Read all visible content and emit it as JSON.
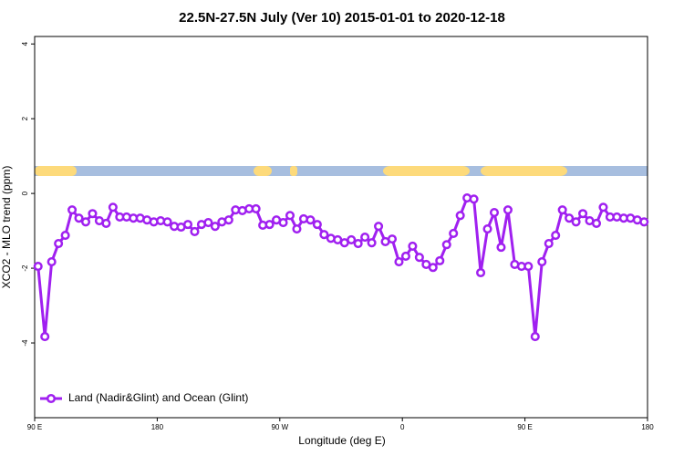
{
  "chart_data": {
    "type": "line",
    "title": "22.5N-27.5N July (Ver 10)   2015-01-01 to 2020-12-18",
    "x_label": "Longitude (deg E)",
    "y_label": "XCO2 - MLO trend (ppm)",
    "x": [
      92.5,
      97.5,
      102.5,
      107.5,
      112.5,
      117.5,
      122.5,
      127.5,
      132.5,
      137.5,
      142.5,
      147.5,
      152.5,
      157.5,
      162.5,
      167.5,
      172.5,
      177.5,
      182.5,
      187.5,
      192.5,
      197.5,
      202.5,
      207.5,
      212.5,
      217.5,
      222.5,
      227.5,
      232.5,
      237.5,
      242.5,
      247.5,
      252.5,
      257.5,
      262.5,
      267.5,
      272.5,
      277.5,
      282.5,
      287.5,
      292.5,
      297.5,
      302.5,
      307.5,
      312.5,
      317.5,
      322.5,
      327.5,
      332.5,
      337.5,
      342.5,
      347.5,
      352.5,
      357.5,
      362.5,
      367.5,
      372.5,
      377.5,
      382.5,
      387.5,
      392.5,
      397.5,
      402.5,
      407.5,
      412.5,
      417.5,
      422.5,
      427.5,
      432.5,
      437.5,
      442.5,
      447.5,
      452.5,
      457.5,
      462.5,
      467.5,
      472.5,
      477.5,
      482.5,
      487.5,
      492.5,
      497.5,
      502.5,
      507.5,
      512.5,
      517.5,
      522.5,
      527.5,
      532.5,
      537.5
    ],
    "series": [
      {
        "name": "Land (Nadir&Glint) and Ocean (Glint)",
        "color": "#a020f0",
        "values": [
          -1.95,
          -3.83,
          -1.83,
          -1.34,
          -1.12,
          -0.44,
          -0.66,
          -0.76,
          -0.54,
          -0.73,
          -0.8,
          -0.37,
          -0.63,
          -0.63,
          -0.66,
          -0.66,
          -0.71,
          -0.76,
          -0.73,
          -0.76,
          -0.88,
          -0.9,
          -0.83,
          -1.02,
          -0.83,
          -0.78,
          -0.88,
          -0.76,
          -0.71,
          -0.44,
          -0.46,
          -0.41,
          -0.41,
          -0.85,
          -0.83,
          -0.71,
          -0.78,
          -0.59,
          -0.95,
          -0.68,
          -0.71,
          -0.83,
          -1.1,
          -1.2,
          -1.24,
          -1.32,
          -1.24,
          -1.34,
          -1.17,
          -1.32,
          -0.88,
          -1.29,
          -1.22,
          -1.83,
          -1.68,
          -1.41,
          -1.71,
          -1.9,
          -1.98,
          -1.8,
          -1.37,
          -1.07,
          -0.59,
          -0.12,
          -0.15,
          -2.12,
          -0.95,
          -0.51,
          -1.44,
          -0.44,
          -1.9,
          -1.95,
          -1.95,
          -3.83,
          -1.83,
          -1.34,
          -1.12,
          -0.44,
          -0.66,
          -0.76,
          -0.54,
          -0.73,
          -0.8,
          -0.37,
          -0.63,
          -0.63,
          -0.66,
          -0.66,
          -0.71,
          -0.76
        ]
      }
    ],
    "xlim": [
      90,
      540
    ],
    "xticks": [
      {
        "value": 90,
        "label": "90 E"
      },
      180,
      {
        "value": 270,
        "label": "90 W"
      },
      {
        "value": 360,
        "label": "0"
      },
      {
        "value": 450,
        "label": "90 E"
      },
      {
        "value": 540,
        "label": "180"
      }
    ],
    "ylim": [
      -6,
      4.2
    ],
    "yticks": [
      4,
      2,
      0,
      -2,
      -4
    ],
    "grid": false,
    "legend": "bottom-left"
  }
}
